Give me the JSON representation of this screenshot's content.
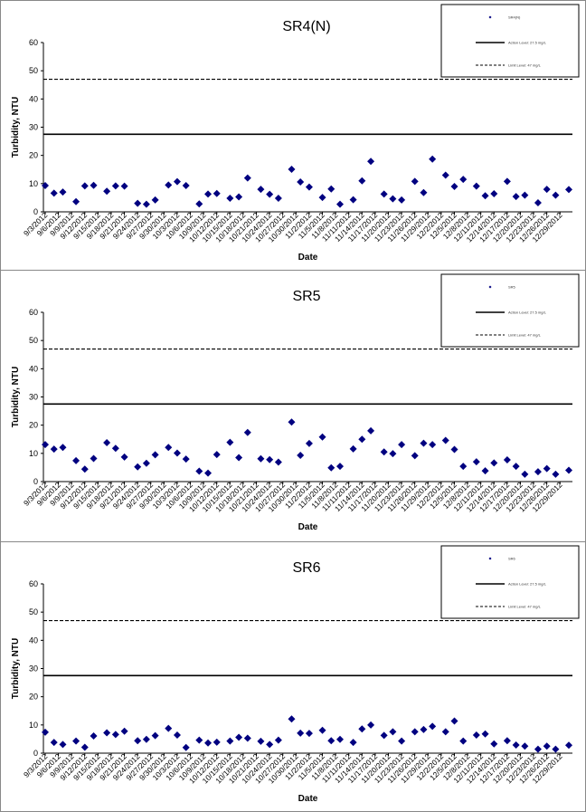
{
  "chart_data": [
    {
      "type": "scatter",
      "title": "SR4(N)",
      "xlabel": "Date",
      "ylabel": "Turbidity, NTU",
      "ylim": [
        0,
        60
      ],
      "yticks": [
        "0",
        "10",
        "20",
        "30",
        "40",
        "50",
        "60"
      ],
      "x_tick_labels": [
        "9/3/2012",
        "9/6/2012",
        "9/9/2012",
        "9/12/2012",
        "9/15/2012",
        "9/18/2012",
        "9/21/2012",
        "9/24/2012",
        "9/27/2012",
        "9/30/2012",
        "10/3/2012",
        "10/6/2012",
        "10/9/2012",
        "10/12/2012",
        "10/15/2012",
        "10/18/2012",
        "10/21/2012",
        "10/24/2012",
        "10/27/2012",
        "10/30/2012",
        "11/2/2012",
        "11/5/2012",
        "11/8/2012",
        "11/11/2012",
        "11/14/2012",
        "11/17/2012",
        "11/20/2012",
        "11/23/2012",
        "11/26/2012",
        "11/29/2012",
        "12/2/2012",
        "12/5/2012",
        "12/8/2012",
        "12/11/2012",
        "12/14/2012",
        "12/17/2012",
        "12/20/2012",
        "12/23/2012",
        "12/26/2012",
        "12/29/2012"
      ],
      "x_range": [
        "9/3/2012",
        "12/31/2012"
      ],
      "grid": false,
      "legend_position": "top-right",
      "legend": [
        "SR4(N)",
        "Action Level: 27.5 mg/L",
        "Limit Level: 47 mg/L"
      ],
      "reference_lines": [
        {
          "name": "Action Level: 27.5 mg/L",
          "value": 27.5,
          "style": "solid"
        },
        {
          "name": "Limit Level: 47 mg/L",
          "value": 47,
          "style": "dashed"
        }
      ],
      "series": [
        {
          "name": "SR4(N)",
          "marker": "diamond",
          "color": "#000080",
          "x": [
            "9/3/2012",
            "9/5/2012",
            "9/7/2012",
            "9/10/2012",
            "9/12/2012",
            "9/14/2012",
            "9/17/2012",
            "9/19/2012",
            "9/21/2012",
            "9/24/2012",
            "9/26/2012",
            "9/28/2012",
            "10/1/2012",
            "10/3/2012",
            "10/5/2012",
            "10/8/2012",
            "10/10/2012",
            "10/12/2012",
            "10/15/2012",
            "10/17/2012",
            "10/19/2012",
            "10/22/2012",
            "10/24/2012",
            "10/26/2012",
            "10/29/2012",
            "10/31/2012",
            "11/2/2012",
            "11/5/2012",
            "11/7/2012",
            "11/9/2012",
            "11/12/2012",
            "11/14/2012",
            "11/16/2012",
            "11/19/2012",
            "11/21/2012",
            "11/23/2012",
            "11/26/2012",
            "11/28/2012",
            "11/30/2012",
            "12/3/2012",
            "12/5/2012",
            "12/7/2012",
            "12/10/2012",
            "12/12/2012",
            "12/14/2012",
            "12/17/2012",
            "12/19/2012",
            "12/21/2012",
            "12/24/2012",
            "12/26/2012",
            "12/28/2012",
            "12/31/2012"
          ],
          "values": [
            9.3,
            6.6,
            7.0,
            3.6,
            9.2,
            9.4,
            7.3,
            9.2,
            9.1,
            3.0,
            2.7,
            4.2,
            9.5,
            10.7,
            9.3,
            2.8,
            6.3,
            6.5,
            4.8,
            5.3,
            12.0,
            8.0,
            6.2,
            4.8,
            15.1,
            10.6,
            8.8,
            5.1,
            8.1,
            2.7,
            4.3,
            11.0,
            17.9,
            6.3,
            4.6,
            4.2,
            10.8,
            6.8,
            18.7,
            13.0,
            9.0,
            11.5,
            9.1,
            5.7,
            6.4,
            10.8,
            5.4,
            5.9,
            3.2,
            8.0,
            5.9,
            7.9
          ]
        }
      ]
    },
    {
      "type": "scatter",
      "title": "SR5",
      "xlabel": "Date",
      "ylabel": "Turbidity, NTU",
      "ylim": [
        0,
        60
      ],
      "yticks": [
        "0",
        "10",
        "20",
        "30",
        "40",
        "50",
        "60"
      ],
      "x_tick_labels": [
        "9/3/2012",
        "9/6/2012",
        "9/9/2012",
        "9/12/2012",
        "9/15/2012",
        "9/18/2012",
        "9/21/2012",
        "9/24/2012",
        "9/27/2012",
        "9/30/2012",
        "10/3/2012",
        "10/6/2012",
        "10/9/2012",
        "10/12/2012",
        "10/15/2012",
        "10/18/2012",
        "10/21/2012",
        "10/24/2012",
        "10/27/2012",
        "10/30/2012",
        "11/2/2012",
        "11/5/2012",
        "11/8/2012",
        "11/11/2012",
        "11/14/2012",
        "11/17/2012",
        "11/20/2012",
        "11/23/2012",
        "11/26/2012",
        "11/29/2012",
        "12/2/2012",
        "12/5/2012",
        "12/8/2012",
        "12/11/2012",
        "12/14/2012",
        "12/17/2012",
        "12/20/2012",
        "12/23/2012",
        "12/26/2012",
        "12/29/2012"
      ],
      "x_range": [
        "9/3/2012",
        "12/31/2012"
      ],
      "grid": false,
      "legend_position": "top-right",
      "legend": [
        "SR5",
        "Action Level: 27.5 mg/L",
        "Limit Level: 47 mg/L"
      ],
      "reference_lines": [
        {
          "name": "Action Level: 27.5 mg/L",
          "value": 27.5,
          "style": "solid"
        },
        {
          "name": "Limit Level: 47 mg/L",
          "value": 47,
          "style": "dashed"
        }
      ],
      "series": [
        {
          "name": "SR5",
          "marker": "diamond",
          "color": "#000080",
          "x": [
            "9/3/2012",
            "9/5/2012",
            "9/7/2012",
            "9/10/2012",
            "9/12/2012",
            "9/14/2012",
            "9/17/2012",
            "9/19/2012",
            "9/21/2012",
            "9/24/2012",
            "9/26/2012",
            "9/28/2012",
            "10/1/2012",
            "10/3/2012",
            "10/5/2012",
            "10/8/2012",
            "10/10/2012",
            "10/12/2012",
            "10/15/2012",
            "10/17/2012",
            "10/19/2012",
            "10/22/2012",
            "10/24/2012",
            "10/26/2012",
            "10/29/2012",
            "10/31/2012",
            "11/2/2012",
            "11/5/2012",
            "11/7/2012",
            "11/9/2012",
            "11/12/2012",
            "11/14/2012",
            "11/16/2012",
            "11/19/2012",
            "11/21/2012",
            "11/23/2012",
            "11/26/2012",
            "11/28/2012",
            "11/30/2012",
            "12/3/2012",
            "12/5/2012",
            "12/7/2012",
            "12/10/2012",
            "12/12/2012",
            "12/14/2012",
            "12/17/2012",
            "12/19/2012",
            "12/21/2012",
            "12/24/2012",
            "12/26/2012",
            "12/28/2012",
            "12/31/2012"
          ],
          "values": [
            13.1,
            11.5,
            12.1,
            7.4,
            4.4,
            8.2,
            13.8,
            11.8,
            8.7,
            5.2,
            6.5,
            9.5,
            12.1,
            10.1,
            8.0,
            3.7,
            3.0,
            9.6,
            13.9,
            8.5,
            17.4,
            8.1,
            7.8,
            6.9,
            21.1,
            9.3,
            13.5,
            15.8,
            4.9,
            5.4,
            11.6,
            15.0,
            18.0,
            10.5,
            9.9,
            13.1,
            9.2,
            13.6,
            13.1,
            14.6,
            11.4,
            5.4,
            7.0,
            3.8,
            6.6,
            7.7,
            5.4,
            2.6,
            3.5,
            4.6,
            2.6,
            4.0
          ]
        }
      ]
    },
    {
      "type": "scatter",
      "title": "SR6",
      "xlabel": "Date",
      "ylabel": "Turbidity, NTU",
      "ylim": [
        0,
        60
      ],
      "yticks": [
        "0",
        "10",
        "20",
        "30",
        "40",
        "50",
        "60"
      ],
      "x_tick_labels": [
        "9/3/2012",
        "9/6/2012",
        "9/9/2012",
        "9/12/2012",
        "9/15/2012",
        "9/18/2012",
        "9/21/2012",
        "9/24/2012",
        "9/27/2012",
        "9/30/2012",
        "10/3/2012",
        "10/6/2012",
        "10/9/2012",
        "10/12/2012",
        "10/15/2012",
        "10/18/2012",
        "10/21/2012",
        "10/24/2012",
        "10/27/2012",
        "10/30/2012",
        "11/2/2012",
        "11/5/2012",
        "11/8/2012",
        "11/11/2012",
        "11/14/2012",
        "11/17/2012",
        "11/20/2012",
        "11/23/2012",
        "11/26/2012",
        "11/29/2012",
        "12/2/2012",
        "12/5/2012",
        "12/8/2012",
        "12/11/2012",
        "12/14/2012",
        "12/17/2012",
        "12/20/2012",
        "12/23/2012",
        "12/26/2012",
        "12/29/2012"
      ],
      "x_range": [
        "9/3/2012",
        "12/31/2012"
      ],
      "grid": false,
      "legend_position": "top-right",
      "legend": [
        "SR6",
        "Action Level: 27.5 mg/L",
        "Limit Level: 47 mg/L"
      ],
      "reference_lines": [
        {
          "name": "Action Level: 27.5 mg/L",
          "value": 27.5,
          "style": "solid"
        },
        {
          "name": "Limit Level: 47 mg/L",
          "value": 47,
          "style": "dashed"
        }
      ],
      "series": [
        {
          "name": "SR6",
          "marker": "diamond",
          "color": "#000080",
          "x": [
            "9/3/2012",
            "9/5/2012",
            "9/7/2012",
            "9/10/2012",
            "9/12/2012",
            "9/14/2012",
            "9/17/2012",
            "9/19/2012",
            "9/21/2012",
            "9/24/2012",
            "9/26/2012",
            "9/28/2012",
            "10/1/2012",
            "10/3/2012",
            "10/5/2012",
            "10/8/2012",
            "10/10/2012",
            "10/12/2012",
            "10/15/2012",
            "10/17/2012",
            "10/19/2012",
            "10/22/2012",
            "10/24/2012",
            "10/26/2012",
            "10/29/2012",
            "10/31/2012",
            "11/2/2012",
            "11/5/2012",
            "11/7/2012",
            "11/9/2012",
            "11/12/2012",
            "11/14/2012",
            "11/16/2012",
            "11/19/2012",
            "11/21/2012",
            "11/23/2012",
            "11/26/2012",
            "11/28/2012",
            "11/30/2012",
            "12/3/2012",
            "12/5/2012",
            "12/7/2012",
            "12/10/2012",
            "12/12/2012",
            "12/14/2012",
            "12/17/2012",
            "12/19/2012",
            "12/21/2012",
            "12/24/2012",
            "12/26/2012",
            "12/28/2012",
            "12/31/2012"
          ],
          "values": [
            7.4,
            3.8,
            3.1,
            4.3,
            2.1,
            6.1,
            7.2,
            6.6,
            7.8,
            4.4,
            4.9,
            6.2,
            8.8,
            6.4,
            2.0,
            4.6,
            3.6,
            3.9,
            4.3,
            5.6,
            5.3,
            4.2,
            3.1,
            4.6,
            12.1,
            7.1,
            7.0,
            8.1,
            4.4,
            4.9,
            3.8,
            8.6,
            10.0,
            6.3,
            7.6,
            4.3,
            7.6,
            8.4,
            9.5,
            7.6,
            11.4,
            4.3,
            6.4,
            6.8,
            3.3,
            4.4,
            2.9,
            2.5,
            1.4,
            2.5,
            1.4,
            2.8
          ]
        }
      ]
    }
  ]
}
